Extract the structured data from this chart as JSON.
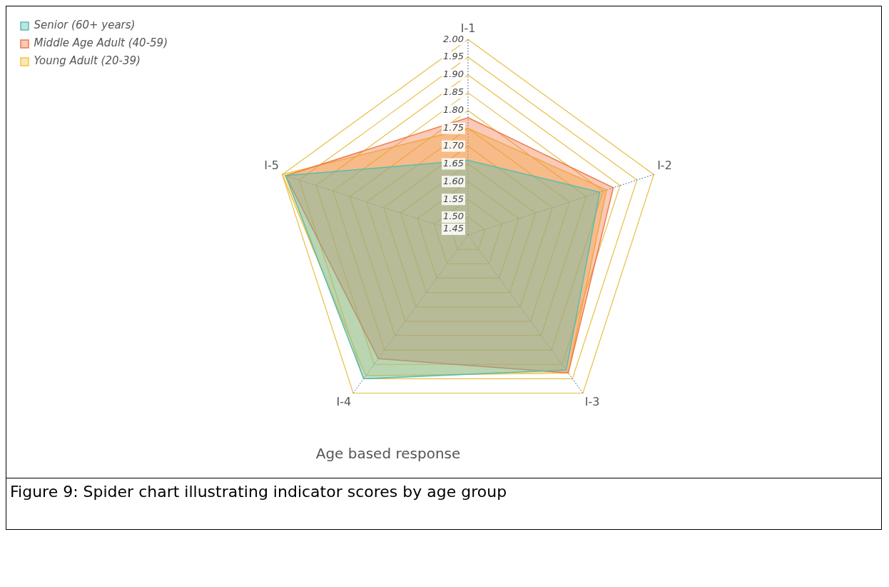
{
  "chart_data": {
    "type": "radar",
    "title": "Age based response",
    "categories": [
      "I-1",
      "I-2",
      "I-3",
      "I-4",
      "I-5"
    ],
    "series": [
      {
        "name": "Senior (60+ years)",
        "color": "#5bbcb0",
        "values": [
          1.66,
          1.84,
          1.92,
          1.95,
          1.99
        ]
      },
      {
        "name": "Middle Age Adult (40-59)",
        "color": "#f07a4a",
        "values": [
          1.78,
          1.88,
          1.93,
          1.88,
          1.99
        ]
      },
      {
        "name": "Young Adult (20-39)",
        "color": "#f5c342",
        "values": [
          1.75,
          1.86,
          1.93,
          1.94,
          2.0
        ]
      }
    ],
    "ylim": [
      1.45,
      2.0
    ],
    "yticks": [
      {
        "value": 1.45,
        "label": "1.45"
      },
      {
        "value": 1.5,
        "label": "1.50"
      },
      {
        "value": 1.55,
        "label": "1.55"
      },
      {
        "value": 1.6,
        "label": "1.60"
      },
      {
        "value": 1.65,
        "label": "1.65"
      },
      {
        "value": 1.7,
        "label": "1.70"
      },
      {
        "value": 1.75,
        "label": "1.75"
      },
      {
        "value": 1.8,
        "label": "1.80"
      },
      {
        "value": 1.85,
        "label": "1.85"
      },
      {
        "value": 1.9,
        "label": "1.90"
      },
      {
        "value": 1.95,
        "label": "1.95"
      },
      {
        "value": 2.0,
        "label": "2.00"
      }
    ],
    "grid": true,
    "legend": "top left",
    "annotations": [
      "Figure 9: Spider chart illustrating indicator scores by age group"
    ]
  }
}
